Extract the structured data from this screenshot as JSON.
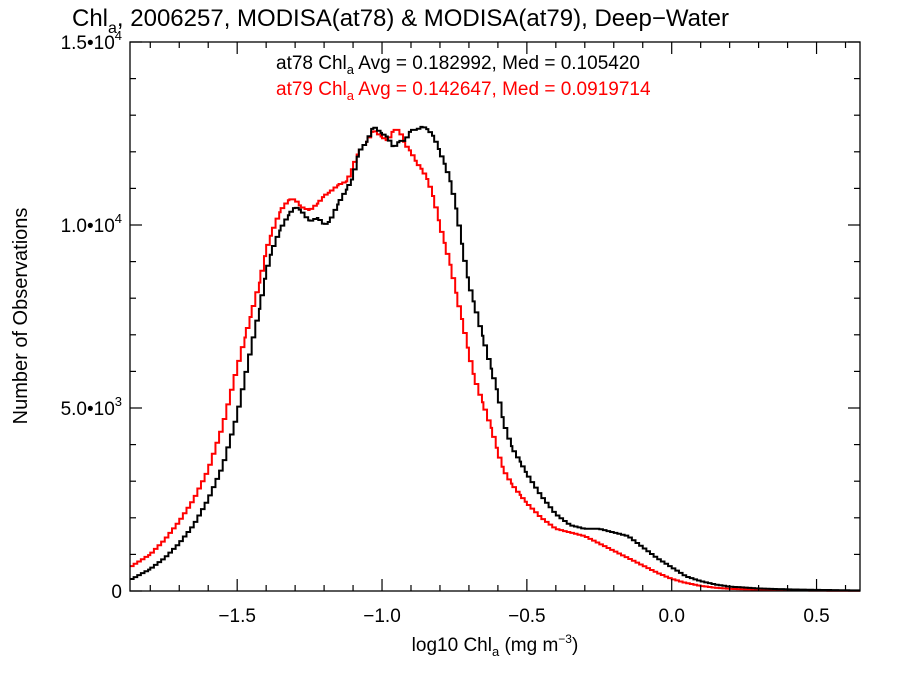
{
  "chart_data": {
    "type": "line",
    "title_main": "Chl",
    "title_sub": "a",
    "title_rest": ", 2006257, MODISA(at78) & MODISA(at79), Deep−Water",
    "xlabel_main": "log10 Chl",
    "xlabel_sub": "a",
    "xlabel_units": " (mg m",
    "xlabel_sup": "−3",
    "xlabel_close": ")",
    "ylabel": "Number of Observations",
    "xlim": [
      -1.87,
      0.65
    ],
    "ylim": [
      0,
      15000
    ],
    "x_ticks": [
      {
        "value": -1.5,
        "label": "−1.5"
      },
      {
        "value": -1.0,
        "label": "−1.0"
      },
      {
        "value": -0.5,
        "label": "−0.5"
      },
      {
        "value": 0.0,
        "label": "0.0"
      },
      {
        "value": 0.5,
        "label": "0.5"
      }
    ],
    "y_ticks": [
      {
        "value": 0,
        "mant": "0",
        "exp": ""
      },
      {
        "value": 5000,
        "mant": "5.0•10",
        "exp": "3"
      },
      {
        "value": 10000,
        "mant": "1.0•10",
        "exp": "4"
      },
      {
        "value": 15000,
        "mant": "1.5•10",
        "exp": "4"
      }
    ],
    "annotations": [
      {
        "series": "at78",
        "name": "at78 Chl",
        "sub": "a",
        "text": " Avg = 0.182992, Med = 0.105420",
        "color": "#000000"
      },
      {
        "series": "at79",
        "name": "at79 Chl",
        "sub": "a",
        "text": " Avg = 0.142647, Med = 0.0919714",
        "color": "#ff0000"
      }
    ],
    "series": [
      {
        "name": "at78",
        "color": "#000000",
        "x": [
          -1.87,
          -1.8,
          -1.75,
          -1.7,
          -1.65,
          -1.6,
          -1.55,
          -1.5,
          -1.45,
          -1.42,
          -1.4,
          -1.38,
          -1.35,
          -1.32,
          -1.3,
          -1.28,
          -1.25,
          -1.22,
          -1.2,
          -1.18,
          -1.15,
          -1.12,
          -1.1,
          -1.08,
          -1.05,
          -1.03,
          -1.0,
          -0.98,
          -0.96,
          -0.94,
          -0.92,
          -0.9,
          -0.88,
          -0.86,
          -0.84,
          -0.82,
          -0.8,
          -0.78,
          -0.76,
          -0.74,
          -0.72,
          -0.7,
          -0.68,
          -0.65,
          -0.62,
          -0.6,
          -0.58,
          -0.55,
          -0.52,
          -0.5,
          -0.45,
          -0.4,
          -0.35,
          -0.3,
          -0.25,
          -0.2,
          -0.15,
          -0.1,
          -0.05,
          0.0,
          0.05,
          0.1,
          0.15,
          0.2,
          0.3,
          0.4,
          0.5,
          0.65
        ],
        "values": [
          300,
          600,
          900,
          1300,
          1800,
          2500,
          3400,
          4800,
          6700,
          7800,
          8700,
          9300,
          9900,
          10300,
          10500,
          10400,
          10100,
          10200,
          10000,
          10100,
          10600,
          11000,
          11300,
          12000,
          12300,
          12700,
          12500,
          12400,
          12100,
          12300,
          12300,
          12600,
          12600,
          12700,
          12600,
          12400,
          12000,
          11600,
          11100,
          10300,
          9300,
          8400,
          7800,
          6900,
          6000,
          5400,
          4600,
          3900,
          3500,
          3200,
          2600,
          2100,
          1800,
          1700,
          1700,
          1600,
          1500,
          1200,
          900,
          650,
          400,
          270,
          180,
          120,
          70,
          45,
          30,
          15
        ]
      },
      {
        "name": "at79",
        "color": "#ff0000",
        "x": [
          -1.87,
          -1.8,
          -1.75,
          -1.7,
          -1.65,
          -1.6,
          -1.55,
          -1.5,
          -1.47,
          -1.45,
          -1.42,
          -1.4,
          -1.38,
          -1.35,
          -1.32,
          -1.3,
          -1.28,
          -1.25,
          -1.22,
          -1.2,
          -1.18,
          -1.15,
          -1.12,
          -1.1,
          -1.08,
          -1.05,
          -1.03,
          -1.0,
          -0.98,
          -0.96,
          -0.94,
          -0.92,
          -0.9,
          -0.88,
          -0.86,
          -0.84,
          -0.82,
          -0.8,
          -0.78,
          -0.76,
          -0.74,
          -0.72,
          -0.7,
          -0.68,
          -0.65,
          -0.62,
          -0.6,
          -0.58,
          -0.55,
          -0.52,
          -0.5,
          -0.45,
          -0.4,
          -0.35,
          -0.3,
          -0.25,
          -0.2,
          -0.15,
          -0.1,
          -0.05,
          0.0,
          0.05,
          0.1,
          0.15,
          0.2,
          0.3,
          0.4,
          0.5,
          0.65
        ],
        "values": [
          650,
          1000,
          1400,
          1900,
          2500,
          3300,
          4500,
          6100,
          7000,
          7600,
          8500,
          9300,
          9800,
          10400,
          10700,
          10700,
          10500,
          10400,
          10600,
          10800,
          10900,
          11100,
          11200,
          11600,
          12000,
          12300,
          12600,
          12400,
          12300,
          12600,
          12600,
          12200,
          12000,
          11700,
          11500,
          11200,
          10700,
          10000,
          9400,
          8800,
          8000,
          7300,
          6500,
          5800,
          5100,
          4400,
          3800,
          3300,
          2900,
          2600,
          2400,
          2000,
          1700,
          1600,
          1500,
          1300,
          1100,
          900,
          700,
          500,
          330,
          220,
          140,
          90,
          60,
          35,
          20,
          10,
          5
        ]
      }
    ]
  }
}
